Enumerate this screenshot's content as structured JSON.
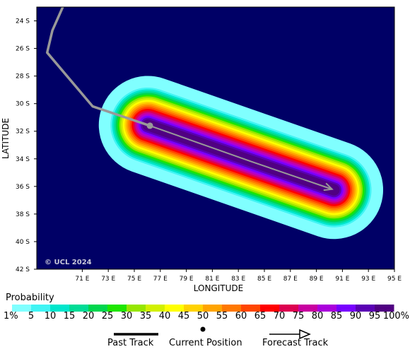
{
  "map": {
    "axes": {
      "x_label": "LONGITUDE",
      "y_label": "LATITUDE",
      "x_ticks": [
        "71 E",
        "73 E",
        "75 E",
        "77 E",
        "79 E",
        "81 E",
        "83 E",
        "85 E",
        "87 E",
        "89 E",
        "91 E",
        "93 E",
        "95 E"
      ],
      "y_ticks": [
        "24 S",
        "26 S",
        "28 S",
        "30 S",
        "32 S",
        "34 S",
        "36 S",
        "38 S",
        "40 S",
        "42 S"
      ],
      "x_range_deg_e": [
        67.5,
        95
      ],
      "y_range_deg_s": [
        23,
        42
      ]
    },
    "background_color": "#000066",
    "copyright": "© UCL 2024",
    "past_track": [
      [
        69.5,
        23
      ],
      [
        68.7,
        24.7
      ],
      [
        68.3,
        26.3
      ],
      [
        71.8,
        30.2
      ],
      [
        76.2,
        31.6
      ]
    ],
    "current_position": [
      76.2,
      31.6
    ],
    "forecast_track": [
      [
        76.2,
        31.6
      ],
      [
        84.0,
        34.2
      ],
      [
        90.2,
        36.2
      ]
    ],
    "probability_swath_color_scale": "probability"
  },
  "legend": {
    "title": "Probability",
    "labels": [
      "1%",
      "5",
      "10",
      "15",
      "20",
      "25",
      "30",
      "35",
      "40",
      "45",
      "50",
      "55",
      "60",
      "65",
      "70",
      "75",
      "80",
      "85",
      "90",
      "95",
      "100%"
    ],
    "colors": [
      "#80ffff",
      "#40f4f4",
      "#00e6cc",
      "#00dc96",
      "#00d64e",
      "#1ee600",
      "#96e600",
      "#d2f000",
      "#ffff00",
      "#ffd200",
      "#ffa400",
      "#ff7800",
      "#ff4600",
      "#ff0000",
      "#dc0050",
      "#c800a0",
      "#aa00dc",
      "#7800ff",
      "#5a00b4",
      "#500082"
    ],
    "key": {
      "past_track": "Past Track",
      "current_position": "Current Position",
      "forecast_track": "Forecast Track"
    }
  }
}
